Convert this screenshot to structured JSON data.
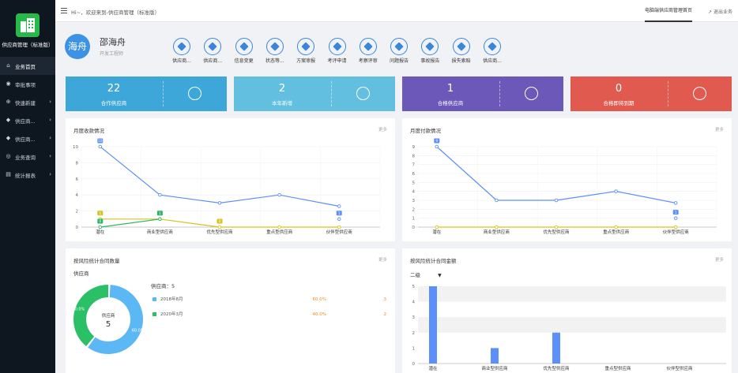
{
  "app": {
    "name": "供应商管理（标准版）"
  },
  "topbar": {
    "welcome": "Hi~，欢迎来到-供应商管理（标准版）",
    "home_tab": "电脑端供应商管理首页",
    "logout": "退出业务"
  },
  "sidebar": {
    "items": [
      {
        "label": "业务首页",
        "icon": "home-icon",
        "active": true,
        "chevron": false
      },
      {
        "label": "审批事项",
        "icon": "approval-icon",
        "active": false,
        "chevron": false
      },
      {
        "label": "快速新建",
        "icon": "quick-create-icon",
        "active": false,
        "chevron": true
      },
      {
        "label": "供应商...",
        "icon": "supplier-icon",
        "active": false,
        "chevron": true
      },
      {
        "label": "供应商...",
        "icon": "supplier-icon",
        "active": false,
        "chevron": true
      },
      {
        "label": "业务查询",
        "icon": "query-icon",
        "active": false,
        "chevron": true
      },
      {
        "label": "统计报表",
        "icon": "report-icon",
        "active": false,
        "chevron": true
      }
    ]
  },
  "profile": {
    "avatar_text": "海舟",
    "name": "邵海舟",
    "role": "开发工程师"
  },
  "quick_actions": [
    {
      "label": "供应商..."
    },
    {
      "label": "供应商..."
    },
    {
      "label": "信息变更"
    },
    {
      "label": "状态等..."
    },
    {
      "label": "方案审报"
    },
    {
      "label": "考评申请"
    },
    {
      "label": "考察评审"
    },
    {
      "label": "问题报告"
    },
    {
      "label": "事故报告"
    },
    {
      "label": "损失索赔"
    },
    {
      "label": "供应商..."
    }
  ],
  "stats": [
    {
      "value": "22",
      "label": "合作供应商",
      "color": "#3ea7d9"
    },
    {
      "value": "2",
      "label": "本年新增",
      "color": "#62bfe0"
    },
    {
      "value": "1",
      "label": "合格供应商",
      "color": "#6c58b8"
    },
    {
      "value": "0",
      "label": "合格即将到期",
      "color": "#e05a50"
    }
  ],
  "panels": {
    "receipt": {
      "title": "月度收款情况",
      "more": "更多"
    },
    "payment": {
      "title": "月度付款情况",
      "more": "更多"
    },
    "risk_count": {
      "title": "按风险统计合同数量",
      "more": "更多",
      "subtitle": "供应商",
      "legend_title": "供应商：5",
      "center_label": "供应商",
      "center_value": "5"
    },
    "risk_amount": {
      "title": "按风险统计合同金额",
      "more": "更多",
      "dropdown": "二级"
    }
  },
  "chart_data": [
    {
      "type": "line",
      "title": "月度收款情况",
      "categories": [
        "潜在",
        "商业型供应商",
        "优先型供应商",
        "重点型供应商",
        "伙伴型供应商"
      ],
      "ylim": [
        0,
        10
      ],
      "yticks": [
        0,
        2,
        4,
        6,
        8,
        10
      ],
      "series": [
        {
          "color": "#5b8ff9",
          "values": [
            10,
            4,
            3,
            4,
            2.6
          ],
          "point_labels": [
            "10",
            "",
            "",
            "",
            ""
          ]
        },
        {
          "color": "#d9c21a",
          "values": [
            1,
            1,
            0,
            0,
            0
          ],
          "point_labels": [
            "1",
            "",
            "0",
            "",
            ""
          ]
        },
        {
          "color": "#2bb560",
          "values": [
            0,
            1,
            null,
            null,
            null
          ],
          "point_labels": [
            "0",
            "1",
            "",
            "",
            ""
          ]
        }
      ],
      "extra_markers": [
        {
          "category": 4,
          "value": 1,
          "label": "1"
        }
      ]
    },
    {
      "type": "line",
      "title": "月度付款情况",
      "categories": [
        "潜在",
        "商业型供应商",
        "优先型供应商",
        "重点型供应商",
        "伙伴型供应商"
      ],
      "ylim": [
        0,
        9
      ],
      "yticks": [
        0,
        1,
        2,
        3,
        4,
        5,
        6,
        7,
        8,
        9
      ],
      "series": [
        {
          "color": "#5b8ff9",
          "values": [
            9,
            3,
            3,
            4,
            2.7
          ],
          "point_labels": [
            "9",
            "",
            "",
            "",
            ""
          ]
        },
        {
          "color": "#d9c21a",
          "values": [
            0,
            0,
            0,
            0,
            0
          ],
          "point_labels": [
            "",
            "",
            "",
            "",
            ""
          ]
        }
      ],
      "extra_markers": [
        {
          "category": 4,
          "value": 1,
          "label": "1"
        }
      ]
    },
    {
      "type": "pie",
      "title": "按风险统计合同数量",
      "slices": [
        {
          "name": "2018年8月",
          "pct": 60.0,
          "value": 3,
          "pct_label": "60.0%",
          "color": "#5bb8f5"
        },
        {
          "name": "2020年3月",
          "pct": 40.0,
          "value": 2,
          "pct_label": "40.0%",
          "color": "#2bbf66"
        }
      ]
    },
    {
      "type": "bar",
      "title": "按风险统计合同金额",
      "categories": [
        "潜在",
        "商业型供应商",
        "优先型供应商",
        "重点型供应商",
        "伙伴型供应商"
      ],
      "values": [
        5,
        1,
        2,
        0,
        0
      ],
      "ylim": [
        0,
        5
      ],
      "yticks": [
        0,
        1,
        2,
        3,
        4,
        5
      ],
      "color": "#5b8ff9"
    }
  ]
}
